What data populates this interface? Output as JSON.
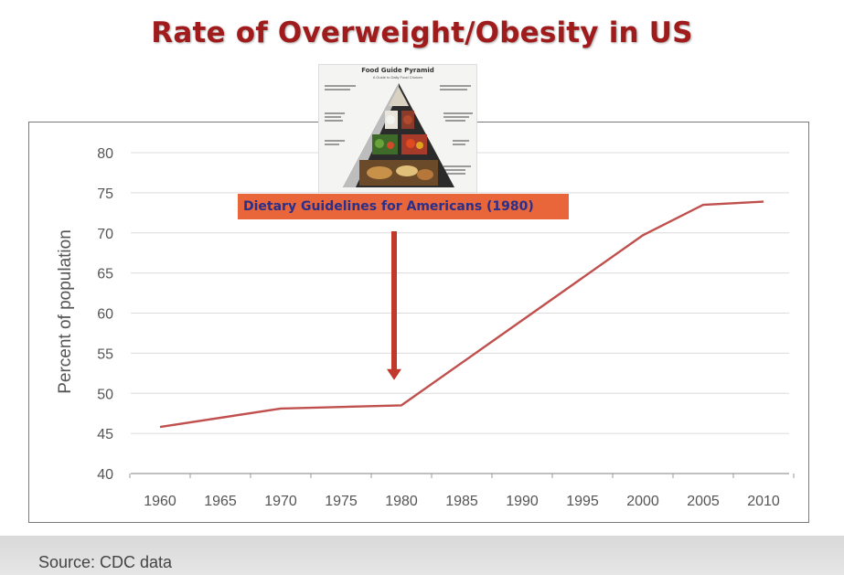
{
  "slide": {
    "title": "Rate of Overweight/Obesity in US",
    "source": "Source: CDC data"
  },
  "pyramid_image": {
    "title": "Food Guide Pyramid",
    "subtitle": "A Guide to Daily Food Choices"
  },
  "annotation": {
    "text": "Dietary Guidelines for Americans (1980)",
    "x": 1980,
    "arrow_from_y": 75,
    "arrow_to_y": 54.5
  },
  "colors": {
    "title": "#a01c1c",
    "line": "#c0504d",
    "arrow": "#c0392b",
    "annotation_bg": "#e8663a",
    "annotation_text": "#2a2f8a"
  },
  "chart_data": {
    "type": "line",
    "title": "",
    "xlabel": "",
    "ylabel": "Percent of population",
    "xlim": [
      1960,
      2010
    ],
    "ylim": [
      40,
      80
    ],
    "x_ticks": [
      1960,
      1965,
      1970,
      1975,
      1980,
      1985,
      1990,
      1995,
      2000,
      2005,
      2010
    ],
    "y_ticks": [
      40,
      45,
      50,
      55,
      60,
      65,
      70,
      75,
      80
    ],
    "grid": "horizontal",
    "legend": "none",
    "series": [
      {
        "x": [
          1960,
          1970,
          1980,
          2000,
          2005,
          2010
        ],
        "y": [
          45.8,
          48.1,
          48.5,
          69.7,
          73.5,
          73.9
        ]
      }
    ]
  }
}
